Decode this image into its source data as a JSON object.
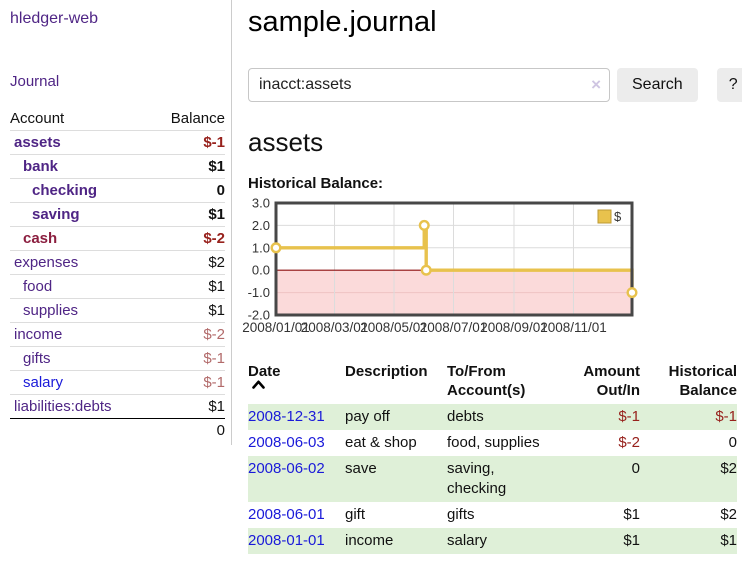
{
  "sidebar": {
    "brand": "hledger-web",
    "nav_journal": "Journal",
    "accounts": {
      "header_account": "Account",
      "header_balance": "Balance",
      "rows": [
        {
          "name": "assets",
          "depth": 1,
          "bold": true,
          "color": "purple",
          "balance": "$-1",
          "bal_class": "neg"
        },
        {
          "name": "bank",
          "depth": 2,
          "bold": true,
          "color": "purple",
          "balance": "$1",
          "bal_class": ""
        },
        {
          "name": "checking",
          "depth": 3,
          "bold": true,
          "color": "purple",
          "balance": "0",
          "bal_class": ""
        },
        {
          "name": "saving",
          "depth": 3,
          "bold": true,
          "color": "purple",
          "balance": "$1",
          "bal_class": ""
        },
        {
          "name": "cash",
          "depth": 2,
          "bold": true,
          "color": "maroon",
          "balance": "$-2",
          "bal_class": "neg"
        },
        {
          "name": "expenses",
          "depth": 1,
          "bold": false,
          "color": "purple",
          "balance": "$2",
          "bal_class": ""
        },
        {
          "name": "food",
          "depth": 2,
          "bold": false,
          "color": "purple",
          "balance": "$1",
          "bal_class": ""
        },
        {
          "name": "supplies",
          "depth": 2,
          "bold": false,
          "color": "purple",
          "balance": "$1",
          "bal_class": ""
        },
        {
          "name": "income",
          "depth": 1,
          "bold": false,
          "color": "purple",
          "balance": "$-2",
          "bal_class": "soft"
        },
        {
          "name": "gifts",
          "depth": 2,
          "bold": false,
          "color": "purple",
          "balance": "$-1",
          "bal_class": "soft"
        },
        {
          "name": "salary",
          "depth": 2,
          "bold": false,
          "color": "blue",
          "balance": "$-1",
          "bal_class": "soft"
        },
        {
          "name": "liabilities:debts",
          "depth": 1,
          "bold": false,
          "color": "purple",
          "balance": "$1",
          "bal_class": ""
        }
      ],
      "total": "0"
    }
  },
  "main": {
    "title": "sample.journal",
    "search": {
      "value": "inacct:assets",
      "clear_icon": "×",
      "button_label": "Search",
      "help_label": "?"
    },
    "account_heading": "assets",
    "chart_label": "Historical Balance:"
  },
  "chart_data": {
    "type": "line",
    "step": true,
    "title": "Historical Balance",
    "legend": {
      "label": "$",
      "position": "top-right"
    },
    "series": [
      {
        "name": "$",
        "color": "#e8c24d",
        "points": [
          {
            "date": "2008-01-01",
            "value": 1
          },
          {
            "date": "2008-06-01",
            "value": 2
          },
          {
            "date": "2008-06-03",
            "value": 0
          },
          {
            "date": "2008-12-31",
            "value": -1
          }
        ]
      }
    ],
    "xlim": [
      "2008-01-01",
      "2008-12-31"
    ],
    "ylim": [
      -2,
      3
    ],
    "y_ticks": [
      3.0,
      2.0,
      1.0,
      0.0,
      -1.0,
      -2.0
    ],
    "x_ticks": [
      {
        "label": "2008/01/01",
        "date": "2008-01-01"
      },
      {
        "label": "2008/03/01",
        "date": "2008-03-01"
      },
      {
        "label": "2008/05/01",
        "date": "2008-05-01"
      },
      {
        "label": "2008/07/01",
        "date": "2008-07-01"
      },
      {
        "label": "2008/09/01",
        "date": "2008-09-01"
      },
      {
        "label": "2008/11/01",
        "date": "2008-11-01"
      }
    ],
    "grid": true,
    "negative_fill": "#fbdada",
    "zero_line_color": "#8c0f0f"
  },
  "register": {
    "headers": {
      "date": "Date",
      "description": "Description",
      "tofrom_line1": "To/From",
      "tofrom_line2": "Account(s)",
      "amount_line1": "Amount",
      "amount_line2": "Out/In",
      "balance_line1": "Historical",
      "balance_line2": "Balance"
    },
    "rows": [
      {
        "date": "2008-12-31",
        "description": "pay off",
        "accounts": "debts",
        "amount": "$-1",
        "amount_neg": true,
        "balance": "$-1",
        "balance_neg": true
      },
      {
        "date": "2008-06-03",
        "description": "eat & shop",
        "accounts": "food, supplies",
        "amount": "$-2",
        "amount_neg": true,
        "balance": "0",
        "balance_neg": false
      },
      {
        "date": "2008-06-02",
        "description": "save",
        "accounts": "saving, checking",
        "amount": "0",
        "amount_neg": false,
        "balance": "$2",
        "balance_neg": false
      },
      {
        "date": "2008-06-01",
        "description": "gift",
        "accounts": "gifts",
        "amount": "$1",
        "amount_neg": false,
        "balance": "$2",
        "balance_neg": false
      },
      {
        "date": "2008-01-01",
        "description": "income",
        "accounts": "salary",
        "amount": "$1",
        "amount_neg": false,
        "balance": "$1",
        "balance_neg": false
      }
    ]
  }
}
